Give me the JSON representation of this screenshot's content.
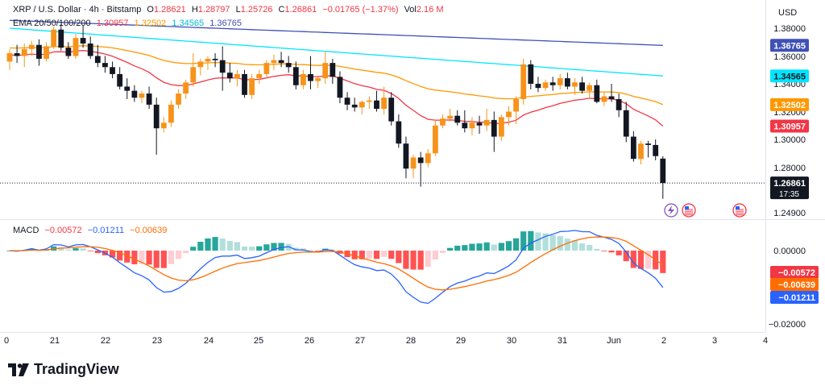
{
  "legend": {
    "symbol": "XRP / U.S. Dollar · 4h · Bitstamp",
    "open_label": "O",
    "open": "1.28621",
    "high_label": "H",
    "high": "1.28797",
    "low_label": "L",
    "low": "1.25726",
    "close_label": "C",
    "close": "1.26861",
    "change": "−0.01765 (−1.37%)",
    "vol_label": "Vol",
    "vol": "2.16 M",
    "ema_label": "EMA 20/50/100/200",
    "ema20": "1.30957",
    "ema50": "1.32502",
    "ema100": "1.34565",
    "ema200": "1.36765",
    "macd_label": "MACD",
    "macd_hist": "−0.00572",
    "macd_line": "−0.01211",
    "macd_signal": "−0.00639"
  },
  "currency": "USD",
  "brand": "TradingView",
  "price_axis": {
    "ticks": [
      "1.38000",
      "1.36000",
      "1.34000",
      "1.32000",
      "1.30000",
      "1.28000",
      "1.24900"
    ],
    "ema_badges": [
      "1.36765",
      "1.34565",
      "1.32502",
      "1.30957"
    ],
    "last_price": "1.26861",
    "countdown": "17:35"
  },
  "macd_axis": {
    "ticks": [
      "0.00000",
      "−0.02000"
    ],
    "badges": [
      "−0.00572",
      "−0.00639",
      "−0.01211"
    ]
  },
  "time_axis": [
    "0",
    "21",
    "22",
    "23",
    "24",
    "25",
    "26",
    "27",
    "28",
    "29",
    "30",
    "31",
    "Jun",
    "2",
    "3",
    "4"
  ],
  "colors": {
    "up": "#f7931a",
    "down": "#131722",
    "ema20": "#f23645",
    "ema50": "#ff9800",
    "ema100": "#00e5ff",
    "ema200": "#3f51b5",
    "macd": "#2962ff",
    "signal": "#ff6d00",
    "hist_pos_strong": "#26a69a",
    "hist_pos_weak": "#b2dfdb",
    "hist_neg_strong": "#ff5252",
    "hist_neg_weak": "#ffcdd2"
  },
  "chart_data": {
    "type": "candlestick",
    "timeframe": "4h",
    "ylim": [
      1.247,
      1.392
    ],
    "candles": [
      [
        1.356,
        1.365,
        1.35,
        1.362
      ],
      [
        1.362,
        1.368,
        1.355,
        1.36
      ],
      [
        1.36,
        1.369,
        1.352,
        1.365
      ],
      [
        1.365,
        1.371,
        1.36,
        1.368
      ],
      [
        1.368,
        1.372,
        1.353,
        1.358
      ],
      [
        1.358,
        1.37,
        1.356,
        1.367
      ],
      [
        1.367,
        1.381,
        1.365,
        1.379
      ],
      [
        1.379,
        1.383,
        1.364,
        1.366
      ],
      [
        1.366,
        1.37,
        1.358,
        1.36
      ],
      [
        1.36,
        1.376,
        1.358,
        1.373
      ],
      [
        1.373,
        1.382,
        1.366,
        1.369
      ],
      [
        1.369,
        1.374,
        1.358,
        1.36
      ],
      [
        1.36,
        1.368,
        1.352,
        1.355
      ],
      [
        1.355,
        1.36,
        1.348,
        1.352
      ],
      [
        1.352,
        1.356,
        1.344,
        1.347
      ],
      [
        1.347,
        1.352,
        1.336,
        1.338
      ],
      [
        1.338,
        1.344,
        1.329,
        1.335
      ],
      [
        1.335,
        1.339,
        1.327,
        1.33
      ],
      [
        1.33,
        1.335,
        1.326,
        1.333
      ],
      [
        1.333,
        1.338,
        1.322,
        1.325
      ],
      [
        1.325,
        1.33,
        1.289,
        1.308
      ],
      [
        1.308,
        1.316,
        1.305,
        1.312
      ],
      [
        1.312,
        1.328,
        1.309,
        1.325
      ],
      [
        1.325,
        1.336,
        1.322,
        1.333
      ],
      [
        1.333,
        1.343,
        1.329,
        1.341
      ],
      [
        1.341,
        1.362,
        1.338,
        1.352
      ],
      [
        1.352,
        1.358,
        1.346,
        1.356
      ],
      [
        1.356,
        1.36,
        1.35,
        1.358
      ],
      [
        1.358,
        1.362,
        1.352,
        1.357
      ],
      [
        1.357,
        1.367,
        1.335,
        1.348
      ],
      [
        1.348,
        1.355,
        1.341,
        1.344
      ],
      [
        1.344,
        1.35,
        1.338,
        1.347
      ],
      [
        1.347,
        1.35,
        1.33,
        1.332
      ],
      [
        1.332,
        1.347,
        1.329,
        1.344
      ],
      [
        1.344,
        1.35,
        1.34,
        1.347
      ],
      [
        1.347,
        1.357,
        1.345,
        1.355
      ],
      [
        1.355,
        1.361,
        1.35,
        1.357
      ],
      [
        1.357,
        1.363,
        1.352,
        1.355
      ],
      [
        1.355,
        1.36,
        1.348,
        1.352
      ],
      [
        1.352,
        1.356,
        1.336,
        1.339
      ],
      [
        1.339,
        1.35,
        1.336,
        1.347
      ],
      [
        1.347,
        1.36,
        1.336,
        1.342
      ],
      [
        1.342,
        1.346,
        1.337,
        1.344
      ],
      [
        1.344,
        1.363,
        1.34,
        1.355
      ],
      [
        1.355,
        1.358,
        1.34,
        1.345
      ],
      [
        1.345,
        1.349,
        1.326,
        1.33
      ],
      [
        1.33,
        1.334,
        1.321,
        1.325
      ],
      [
        1.325,
        1.33,
        1.32,
        1.323
      ],
      [
        1.323,
        1.328,
        1.318,
        1.327
      ],
      [
        1.327,
        1.331,
        1.322,
        1.328
      ],
      [
        1.328,
        1.335,
        1.32,
        1.322
      ],
      [
        1.322,
        1.338,
        1.318,
        1.33
      ],
      [
        1.33,
        1.334,
        1.31,
        1.313
      ],
      [
        1.313,
        1.318,
        1.294,
        1.297
      ],
      [
        1.297,
        1.302,
        1.272,
        1.279
      ],
      [
        1.279,
        1.289,
        1.272,
        1.287
      ],
      [
        1.287,
        1.291,
        1.266,
        1.283
      ],
      [
        1.283,
        1.293,
        1.28,
        1.29
      ],
      [
        1.29,
        1.314,
        1.288,
        1.31
      ],
      [
        1.31,
        1.318,
        1.308,
        1.315
      ],
      [
        1.315,
        1.322,
        1.313,
        1.317
      ],
      [
        1.317,
        1.321,
        1.31,
        1.312
      ],
      [
        1.312,
        1.321,
        1.305,
        1.308
      ],
      [
        1.308,
        1.316,
        1.303,
        1.312
      ],
      [
        1.312,
        1.317,
        1.304,
        1.31
      ],
      [
        1.31,
        1.322,
        1.306,
        1.314
      ],
      [
        1.314,
        1.32,
        1.291,
        1.302
      ],
      [
        1.302,
        1.318,
        1.299,
        1.316
      ],
      [
        1.316,
        1.324,
        1.31,
        1.32
      ],
      [
        1.32,
        1.331,
        1.311,
        1.329
      ],
      [
        1.329,
        1.358,
        1.325,
        1.354
      ],
      [
        1.354,
        1.357,
        1.336,
        1.34
      ],
      [
        1.34,
        1.345,
        1.334,
        1.337
      ],
      [
        1.337,
        1.343,
        1.335,
        1.341
      ],
      [
        1.341,
        1.345,
        1.335,
        1.339
      ],
      [
        1.339,
        1.347,
        1.336,
        1.344
      ],
      [
        1.344,
        1.348,
        1.336,
        1.338
      ],
      [
        1.338,
        1.344,
        1.332,
        1.341
      ],
      [
        1.341,
        1.345,
        1.333,
        1.335
      ],
      [
        1.335,
        1.341,
        1.329,
        1.339
      ],
      [
        1.339,
        1.343,
        1.326,
        1.327
      ],
      [
        1.327,
        1.334,
        1.324,
        1.331
      ],
      [
        1.331,
        1.34,
        1.327,
        1.329
      ],
      [
        1.329,
        1.333,
        1.316,
        1.321
      ],
      [
        1.321,
        1.327,
        1.298,
        1.302
      ],
      [
        1.302,
        1.306,
        1.284,
        1.286
      ],
      [
        1.286,
        1.299,
        1.282,
        1.297
      ],
      [
        1.297,
        1.299,
        1.287,
        1.296
      ],
      [
        1.296,
        1.3,
        1.285,
        1.288
      ],
      [
        1.28621,
        1.28797,
        1.25726,
        1.26861
      ]
    ]
  }
}
